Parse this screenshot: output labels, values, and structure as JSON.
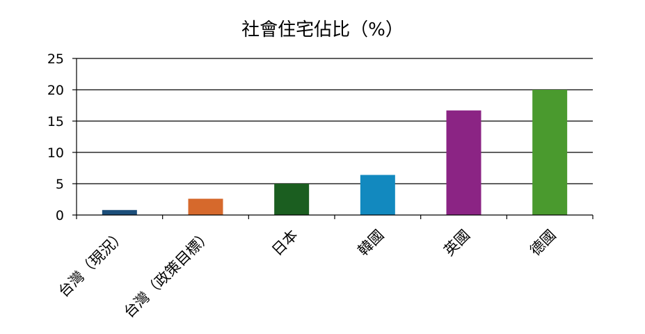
{
  "chart_data": {
    "type": "bar",
    "title": "社會住宅佔比（%）",
    "categories": [
      "台灣（現況）",
      "台灣（政策目標）",
      "日本",
      "韓國",
      "英國",
      "德國"
    ],
    "values": [
      0.8,
      2.6,
      5.0,
      6.4,
      16.7,
      20.0
    ],
    "colors": [
      "#1c4e7a",
      "#d6692c",
      "#1b5e20",
      "#1289bf",
      "#8b2484",
      "#4a9a2e"
    ],
    "ylim": [
      0,
      25
    ],
    "yticks": [
      0,
      5,
      10,
      15,
      20,
      25
    ],
    "grid": true,
    "legend": "none",
    "xlabel": "",
    "ylabel": ""
  }
}
